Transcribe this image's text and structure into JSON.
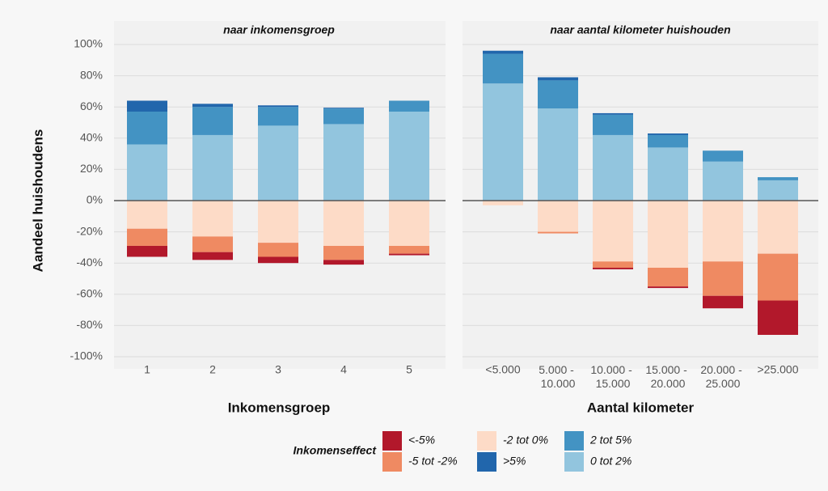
{
  "chart_data": [
    {
      "type": "bar",
      "stacked": true,
      "title": "naar inkomensgroep",
      "xlabel": "Inkomensgroep",
      "ylabel": "Aandeel huishoudens",
      "legend_title": "Inkomenseffect",
      "categories": [
        "1",
        "2",
        "3",
        "4",
        "5"
      ],
      "ylim": [
        -100,
        100
      ],
      "yticks": [
        {
          "value": -100,
          "label": "-100%"
        },
        {
          "value": -80,
          "label": "-80%"
        },
        {
          "value": -60,
          "label": "-60%"
        },
        {
          "value": -40,
          "label": "-40%"
        },
        {
          "value": -20,
          "label": "-20%"
        },
        {
          "value": 0,
          "label": "0%"
        },
        {
          "value": 20,
          "label": "20%"
        },
        {
          "value": 40,
          "label": "40%"
        },
        {
          "value": 60,
          "label": "60%"
        },
        {
          "value": 80,
          "label": "80%"
        },
        {
          "value": 100,
          "label": "100%"
        }
      ],
      "grid": true,
      "series": [
        {
          "name": "<-5%",
          "color": "#b2182b",
          "values": [
            -7,
            -5,
            -4,
            -3,
            -1
          ]
        },
        {
          "name": "-5 tot -2%",
          "color": "#ef8a62",
          "values": [
            -11,
            -10,
            -9,
            -9,
            -5
          ]
        },
        {
          "name": "-2 tot 0%",
          "color": "#fddbc7",
          "values": [
            -18,
            -23,
            -27,
            -29,
            -29
          ]
        },
        {
          "name": ">5%",
          "color": "#2166ac",
          "values": [
            7,
            2,
            1,
            0.5,
            0
          ]
        },
        {
          "name": "2 tot 5%",
          "color": "#4393c3",
          "values": [
            21,
            18,
            12,
            10,
            7
          ]
        },
        {
          "name": "0 tot 2%",
          "color": "#92c5de",
          "values": [
            36,
            42,
            48,
            49,
            57
          ]
        }
      ]
    },
    {
      "type": "bar",
      "stacked": true,
      "title": "naar aantal kilometer huishouden",
      "xlabel": "Aantal kilometer",
      "categories": [
        "<5.000",
        "5.000 - 10.000",
        "10.000 - 15.000",
        "15.000 - 20.000",
        "20.000 - 25.000",
        ">25.000"
      ],
      "series": [
        {
          "name": "<-5%",
          "color": "#b2182b",
          "values": [
            0,
            0,
            -1,
            -1,
            -8,
            -22
          ]
        },
        {
          "name": "-5 tot -2%",
          "color": "#ef8a62",
          "values": [
            0,
            -1,
            -4,
            -12,
            -22,
            -30
          ]
        },
        {
          "name": "-2 tot 0%",
          "color": "#fddbc7",
          "values": [
            -3,
            -20,
            -39,
            -43,
            -39,
            -34
          ]
        },
        {
          "name": ">5%",
          "color": "#2166ac",
          "values": [
            2,
            2,
            1,
            1,
            0,
            0
          ]
        },
        {
          "name": "2 tot 5%",
          "color": "#4393c3",
          "values": [
            19,
            18,
            13,
            8,
            7,
            2
          ]
        },
        {
          "name": "0 tot 2%",
          "color": "#92c5de",
          "values": [
            75,
            59,
            42,
            34,
            25,
            13
          ]
        }
      ]
    }
  ]
}
